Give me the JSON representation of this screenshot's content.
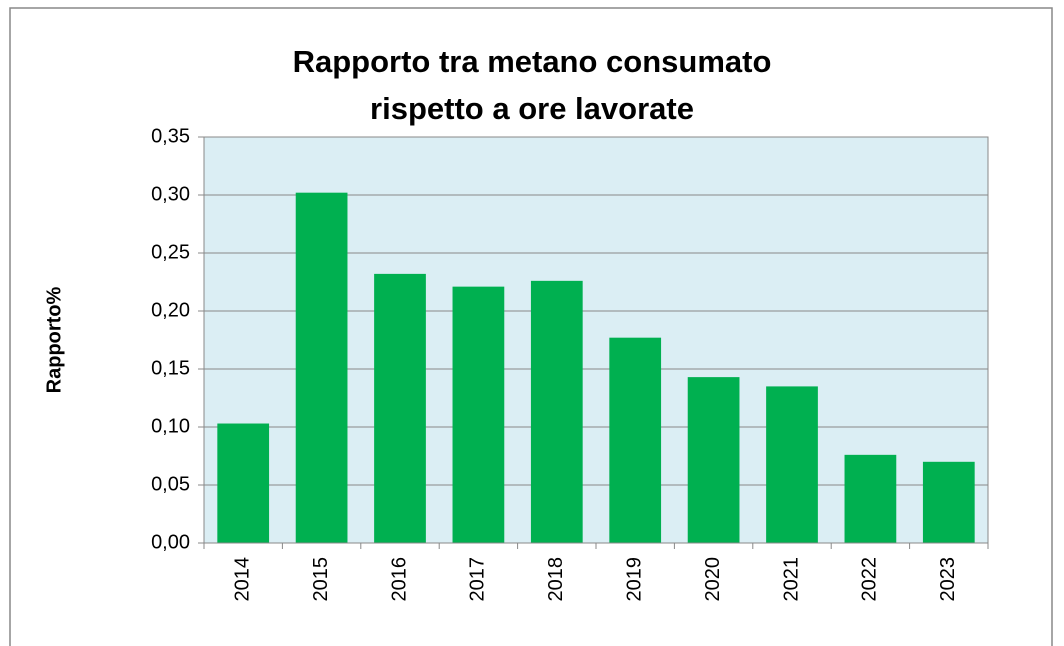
{
  "chart_data": {
    "type": "bar",
    "title": "Rapporto tra metano consumato rispetto a ore lavorate",
    "y_label": "Rapporto%",
    "categories": [
      "2014",
      "2015",
      "2016",
      "2017",
      "2018",
      "2019",
      "2020",
      "2021",
      "2022",
      "2023"
    ],
    "values": [
      0.103,
      0.302,
      0.232,
      0.221,
      0.226,
      0.177,
      0.143,
      0.135,
      0.076,
      0.07
    ],
    "color": "#00b050",
    "ylim": [
      0,
      0.35
    ],
    "yticks": [
      {
        "value": 0,
        "label": "0,00"
      },
      {
        "value": 0.05,
        "label": "0,05"
      },
      {
        "value": 0.1,
        "label": "0,10"
      },
      {
        "value": 0.15,
        "label": "0,15"
      },
      {
        "value": 0.2,
        "label": "0,20"
      },
      {
        "value": 0.25,
        "label": "0,25"
      },
      {
        "value": 0.3,
        "label": "0,30"
      },
      {
        "value": 0.35,
        "label": "0,35"
      }
    ],
    "grid": true
  }
}
